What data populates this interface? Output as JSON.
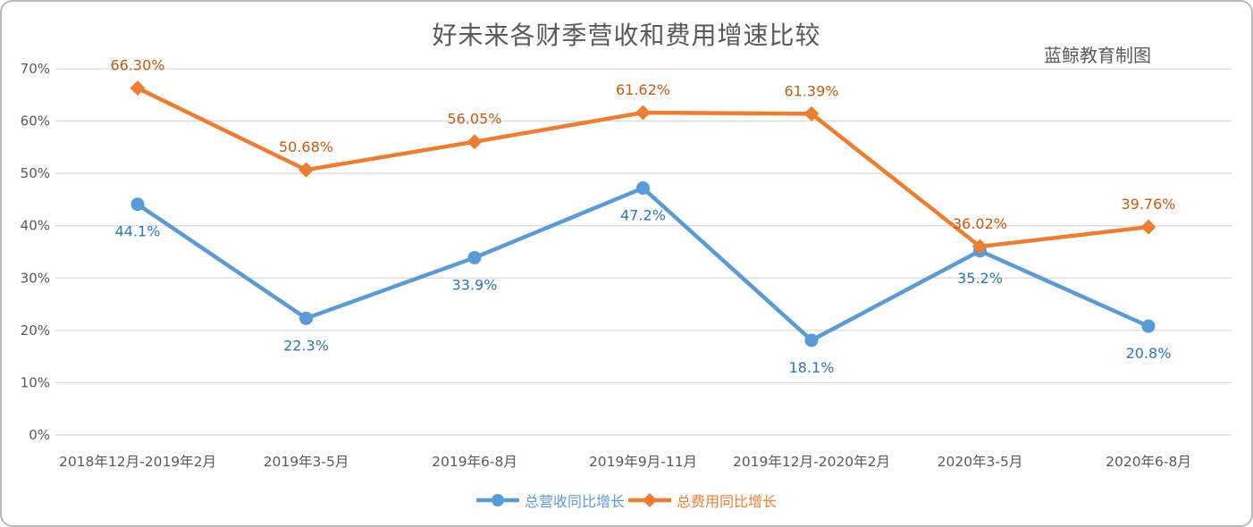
{
  "chart_data": {
    "type": "line",
    "title": "好未来各财季营收和费用增速比较",
    "annotation": "蓝鲸教育制图",
    "categories": [
      "2018年12月-2019年2月",
      "2019年3-5月",
      "2019年6-8月",
      "2019年9月-11月",
      "2019年12月-2020年2月",
      "2020年3-5月",
      "2020年6-8月"
    ],
    "series": [
      {
        "name": "总营收同比增长",
        "values": [
          44.1,
          22.3,
          33.9,
          47.2,
          18.1,
          35.2,
          20.8
        ],
        "labels": [
          "44.1%",
          "22.3%",
          "33.9%",
          "47.2%",
          "18.1%",
          "35.2%",
          "20.8%"
        ],
        "color": "#5B9BD5",
        "label_color": "#2E75B6",
        "marker": "circle",
        "label_position": "below"
      },
      {
        "name": "总费用同比增长",
        "values": [
          66.3,
          50.68,
          56.05,
          61.62,
          61.39,
          36.02,
          39.76
        ],
        "labels": [
          "66.30%",
          "50.68%",
          "56.05%",
          "61.62%",
          "61.39%",
          "36.02%",
          "39.76%"
        ],
        "color": "#ED7D31",
        "label_color": "#C55A11",
        "marker": "diamond",
        "label_position": "above"
      }
    ],
    "y_axis": {
      "min": 0,
      "max": 70,
      "step": 10,
      "tick_labels": [
        "0%",
        "10%",
        "20%",
        "30%",
        "40%",
        "50%",
        "60%",
        "70%"
      ]
    },
    "grid": true,
    "legend_position": "bottom",
    "styles": {
      "grid_color": "#D9D9D9",
      "axis_text_color": "#595959",
      "title_color": "#595959",
      "border_color": "#B9B9B9"
    }
  }
}
